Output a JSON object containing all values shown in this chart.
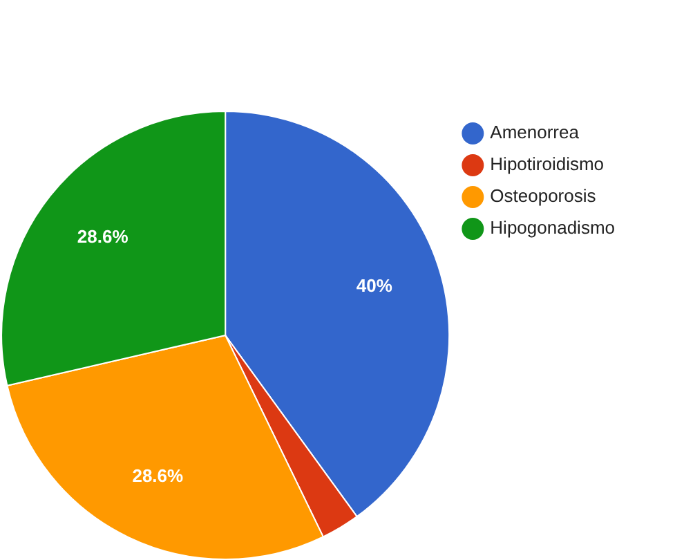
{
  "chart_data": {
    "type": "pie",
    "categories": [
      "Amenorrea",
      "Hipotiroidismo",
      "Osteoporosis",
      "Hipogonadismo"
    ],
    "values": [
      40,
      2.8,
      28.6,
      28.6
    ],
    "colors": [
      "#3366cc",
      "#dc3912",
      "#ff9900",
      "#109618"
    ],
    "value_labels": [
      "40%",
      null,
      "28.6%",
      "28.6%"
    ],
    "legend": "top right"
  }
}
